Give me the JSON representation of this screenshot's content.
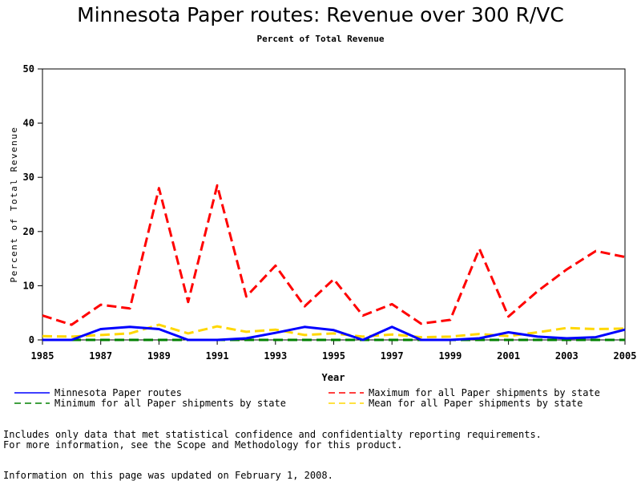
{
  "chart_data": {
    "type": "line",
    "title": "Minnesota Paper routes: Revenue over 300 R/VC",
    "subtitle": "Percent of Total Revenue",
    "xlabel": "Year",
    "ylabel": "Percent of Total Revenue",
    "xlim": [
      1985,
      2005
    ],
    "ylim": [
      0,
      50
    ],
    "x_ticks": [
      "1985",
      "1987",
      "1989",
      "1991",
      "1993",
      "1995",
      "1997",
      "1999",
      "2001",
      "2003",
      "2005"
    ],
    "y_ticks": [
      "0",
      "10",
      "20",
      "30",
      "40",
      "50"
    ],
    "grid": false,
    "legend_position": "bottom",
    "x": [
      1985,
      1986,
      1987,
      1988,
      1989,
      1990,
      1991,
      1992,
      1993,
      1994,
      1995,
      1996,
      1997,
      1998,
      1999,
      2000,
      2001,
      2002,
      2003,
      2004,
      2005
    ],
    "series": [
      {
        "name": "Minnesota Paper routes",
        "color": "#0000ff",
        "dash": "solid",
        "values": [
          0.0,
          0.0,
          2.0,
          2.4,
          2.0,
          0.0,
          0.0,
          0.3,
          1.3,
          2.4,
          1.8,
          0.0,
          2.4,
          0.0,
          0.0,
          0.3,
          1.4,
          0.6,
          0.3,
          0.5,
          1.9
        ]
      },
      {
        "name": "Maximum for all Paper shipments by state",
        "color": "#ff0000",
        "dash": "dashed",
        "values": [
          4.5,
          2.8,
          6.5,
          5.8,
          28.0,
          7.0,
          28.5,
          8.0,
          13.7,
          6.2,
          11.2,
          4.5,
          6.6,
          3.0,
          3.7,
          16.8,
          4.3,
          9.0,
          13.0,
          16.4,
          15.3
        ]
      },
      {
        "name": "Minimum for all Paper shipments by state",
        "color": "#008000",
        "dash": "dashed",
        "values": [
          0,
          0,
          0,
          0,
          0,
          0,
          0,
          0,
          0,
          0,
          0,
          0,
          0,
          0,
          0,
          0,
          0,
          0,
          0,
          0,
          0
        ]
      },
      {
        "name": "Mean for all Paper shipments by state",
        "color": "#ffd700",
        "dash": "dashed",
        "values": [
          0.7,
          0.6,
          0.9,
          1.2,
          2.8,
          1.2,
          2.5,
          1.5,
          1.9,
          0.9,
          1.2,
          0.6,
          1.0,
          0.5,
          0.6,
          1.1,
          0.7,
          1.4,
          2.2,
          2.0,
          2.1
        ]
      }
    ]
  },
  "footer": {
    "note_line1": "Includes only data that met statistical confidence and confidentialty reporting requirements.",
    "note_line2": "For more information, see the Scope and Methodology for this product.",
    "updated": "Information on this page was updated on February 1, 2008."
  }
}
